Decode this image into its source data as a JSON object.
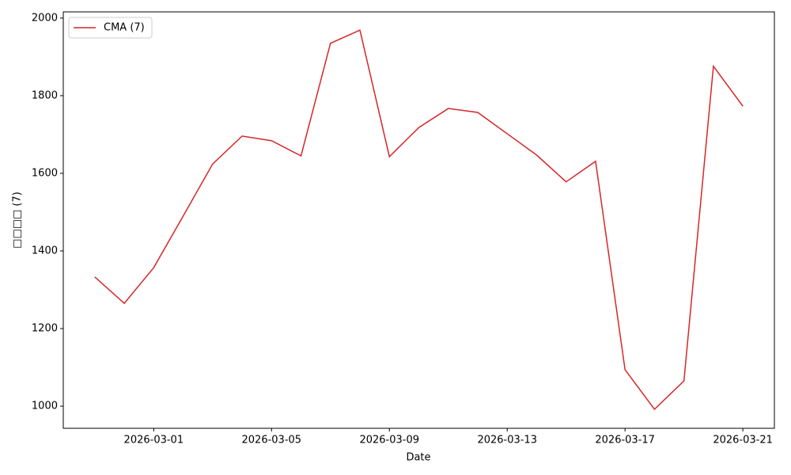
{
  "chart_data": {
    "type": "line",
    "xlabel": "Date",
    "ylabel": "□□□□ (7)",
    "x": [
      "2026-02-27",
      "2026-02-28",
      "2026-03-01",
      "2026-03-02",
      "2026-03-03",
      "2026-03-04",
      "2026-03-05",
      "2026-03-06",
      "2026-03-07",
      "2026-03-08",
      "2026-03-09",
      "2026-03-10",
      "2026-03-11",
      "2026-03-12",
      "2026-03-13",
      "2026-03-14",
      "2026-03-15",
      "2026-03-16",
      "2026-03-17",
      "2026-03-18",
      "2026-03-19",
      "2026-03-20",
      "2026-03-21"
    ],
    "series": [
      {
        "name": "CMA (7)",
        "color": "#d62728",
        "values": [
          1333,
          1265,
          1357,
          1490,
          1624,
          1696,
          1684,
          1645,
          1935,
          1969,
          1643,
          1718,
          1767,
          1757,
          1702,
          1647,
          1578,
          1631,
          1094,
          992,
          1065,
          1876,
          1773
        ]
      }
    ],
    "xlim": [
      "2026-02-25T22:19",
      "2026-03-22T01:41"
    ],
    "xticks": [
      "2026-03-01",
      "2026-03-05",
      "2026-03-09",
      "2026-03-13",
      "2026-03-17",
      "2026-03-21"
    ],
    "ylim": [
      943,
      2016
    ],
    "yticks": [
      1000,
      1200,
      1400,
      1600,
      1800,
      2000
    ],
    "legend": "upper left"
  }
}
